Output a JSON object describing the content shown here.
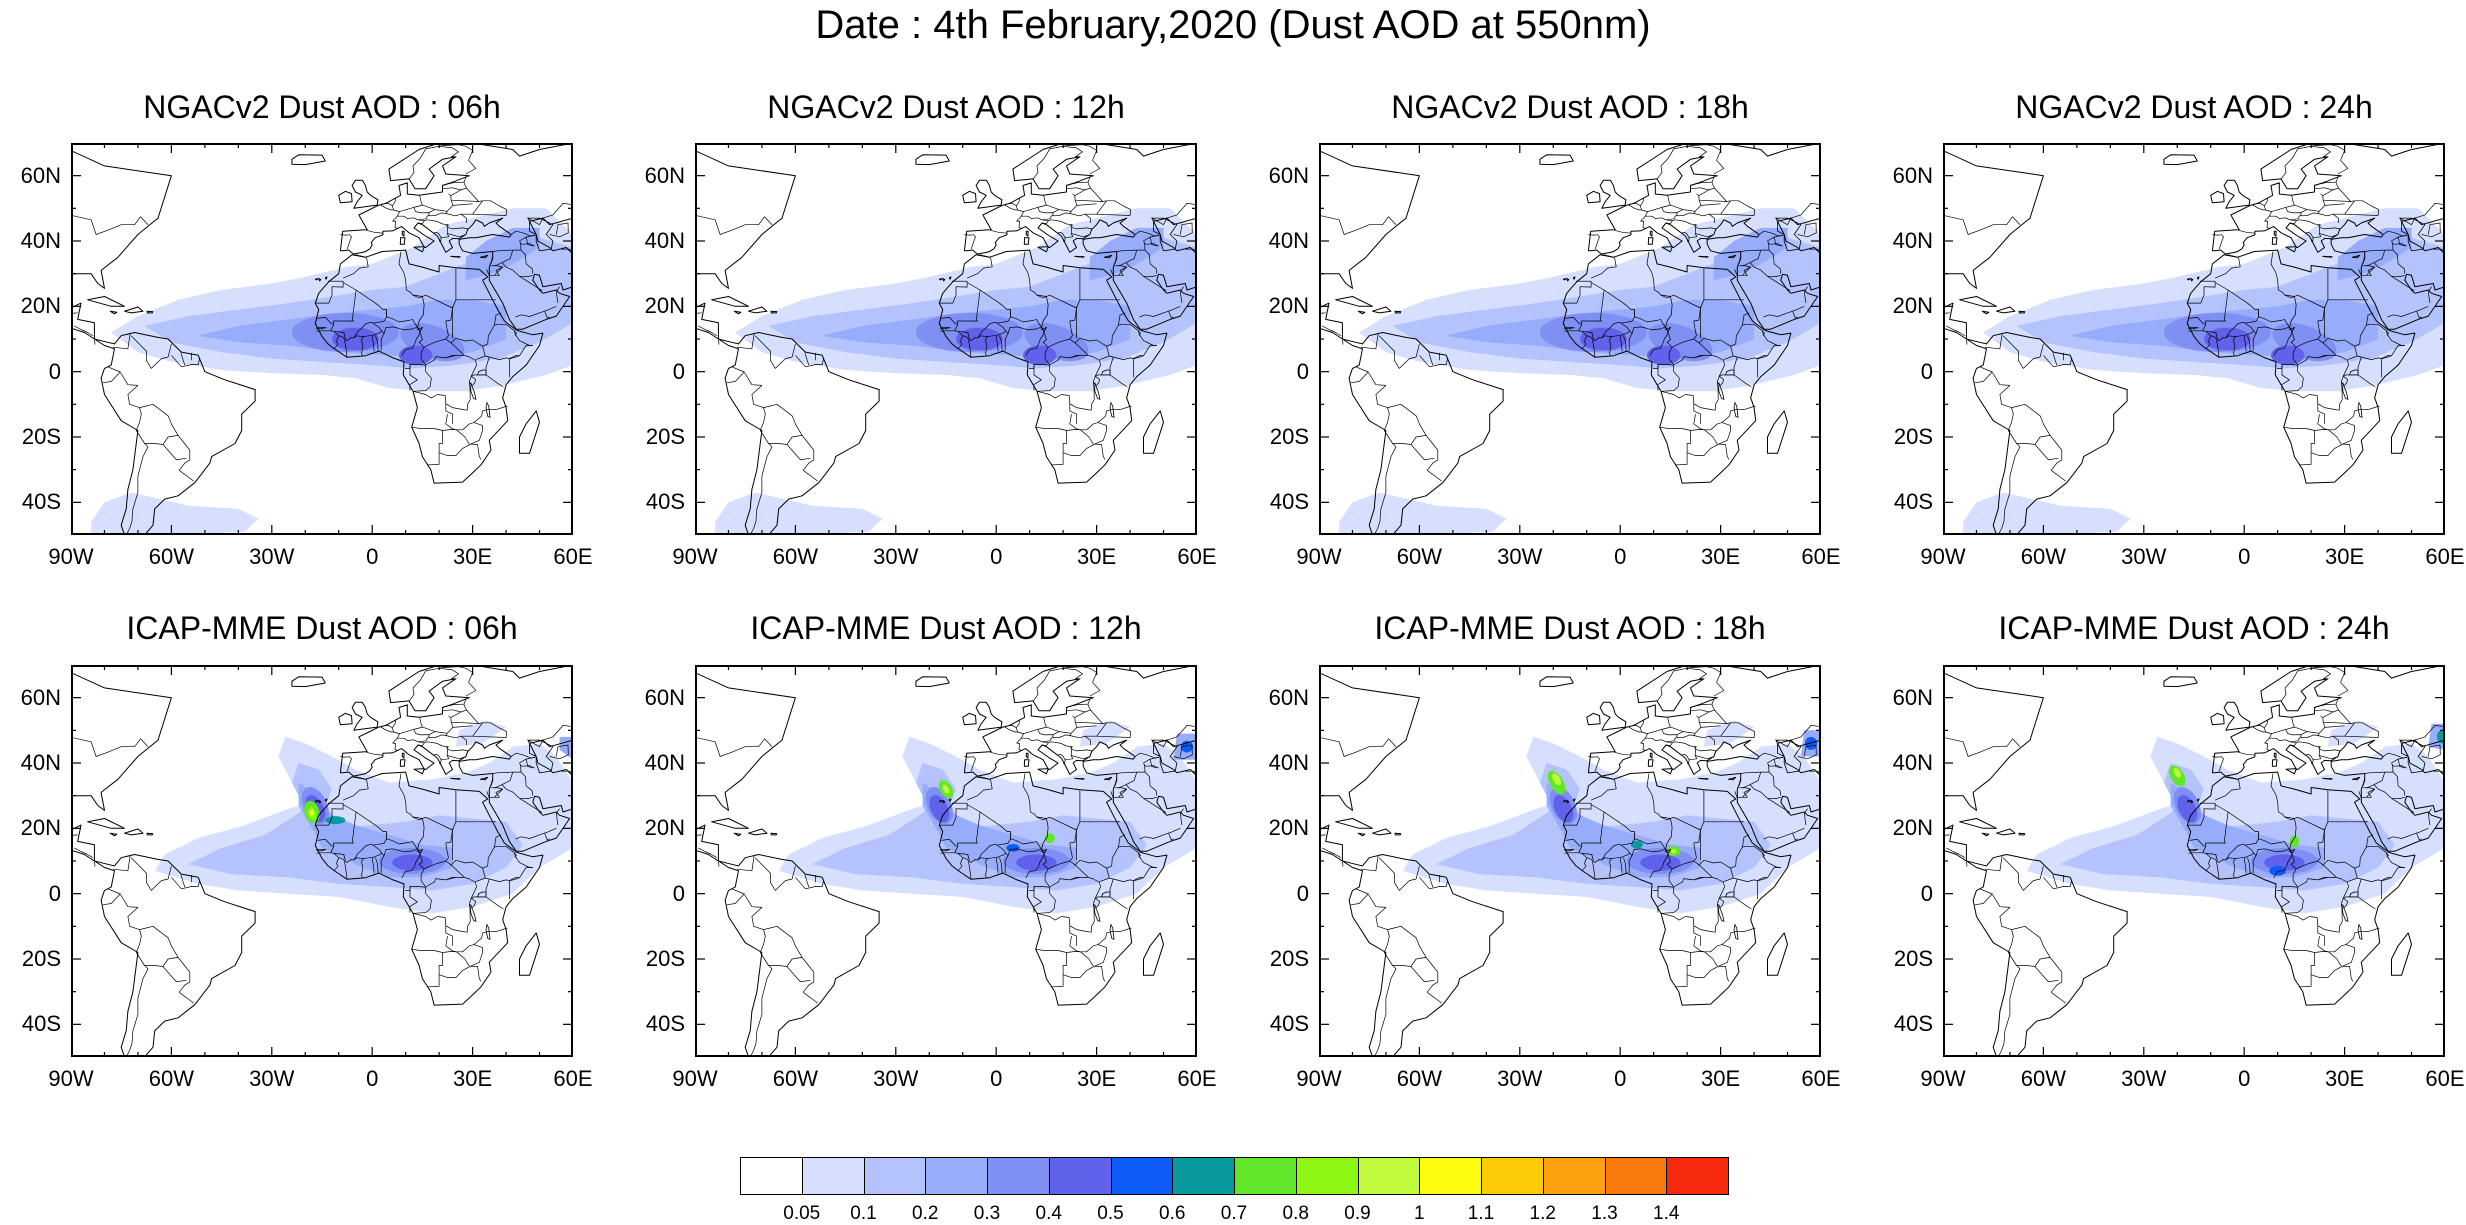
{
  "title": "Date : 4th February,2020 (Dust AOD at 550nm)",
  "lat_ticks": [
    60,
    40,
    20,
    0,
    -20,
    -40
  ],
  "lat_labels": [
    "60N",
    "40N",
    "20N",
    "0",
    "20S",
    "40S"
  ],
  "lon_ticks": [
    -90,
    -60,
    -30,
    0,
    30,
    60
  ],
  "lon_labels": [
    "90W",
    "60W",
    "30W",
    "0",
    "30E",
    "60E"
  ],
  "lon_range": [
    -90,
    60
  ],
  "lat_range": [
    -50,
    70
  ],
  "panels": [
    {
      "title": "NGACv2 Dust AOD : 06h",
      "model": "NGACv2",
      "hour": "06h"
    },
    {
      "title": "NGACv2 Dust AOD : 12h",
      "model": "NGACv2",
      "hour": "12h"
    },
    {
      "title": "NGACv2 Dust AOD : 18h",
      "model": "NGACv2",
      "hour": "18h"
    },
    {
      "title": "NGACv2 Dust AOD : 24h",
      "model": "NGACv2",
      "hour": "24h"
    },
    {
      "title": "ICAP-MME Dust AOD : 06h",
      "model": "ICAP-MME",
      "hour": "06h"
    },
    {
      "title": "ICAP-MME Dust AOD : 12h",
      "model": "ICAP-MME",
      "hour": "12h"
    },
    {
      "title": "ICAP-MME Dust AOD : 18h",
      "model": "ICAP-MME",
      "hour": "18h"
    },
    {
      "title": "ICAP-MME Dust AOD : 24h",
      "model": "ICAP-MME",
      "hour": "24h"
    }
  ],
  "colorbar": {
    "colors": [
      "#ffffff",
      "#d6dffd",
      "#b4c3fb",
      "#97acfa",
      "#7f8ff4",
      "#6162ec",
      "#0d5cf7",
      "#089a9c",
      "#61e62a",
      "#8ef612",
      "#c0fb3c",
      "#fdfc0d",
      "#fdcc08",
      "#fba10e",
      "#fb7a0c",
      "#f82a0d"
    ],
    "labels": [
      "0.05",
      "0.1",
      "0.2",
      "0.3",
      "0.4",
      "0.5",
      "0.6",
      "0.7",
      "0.8",
      "0.9",
      "1",
      "1.1",
      "1.2",
      "1.3",
      "1.4"
    ]
  }
}
